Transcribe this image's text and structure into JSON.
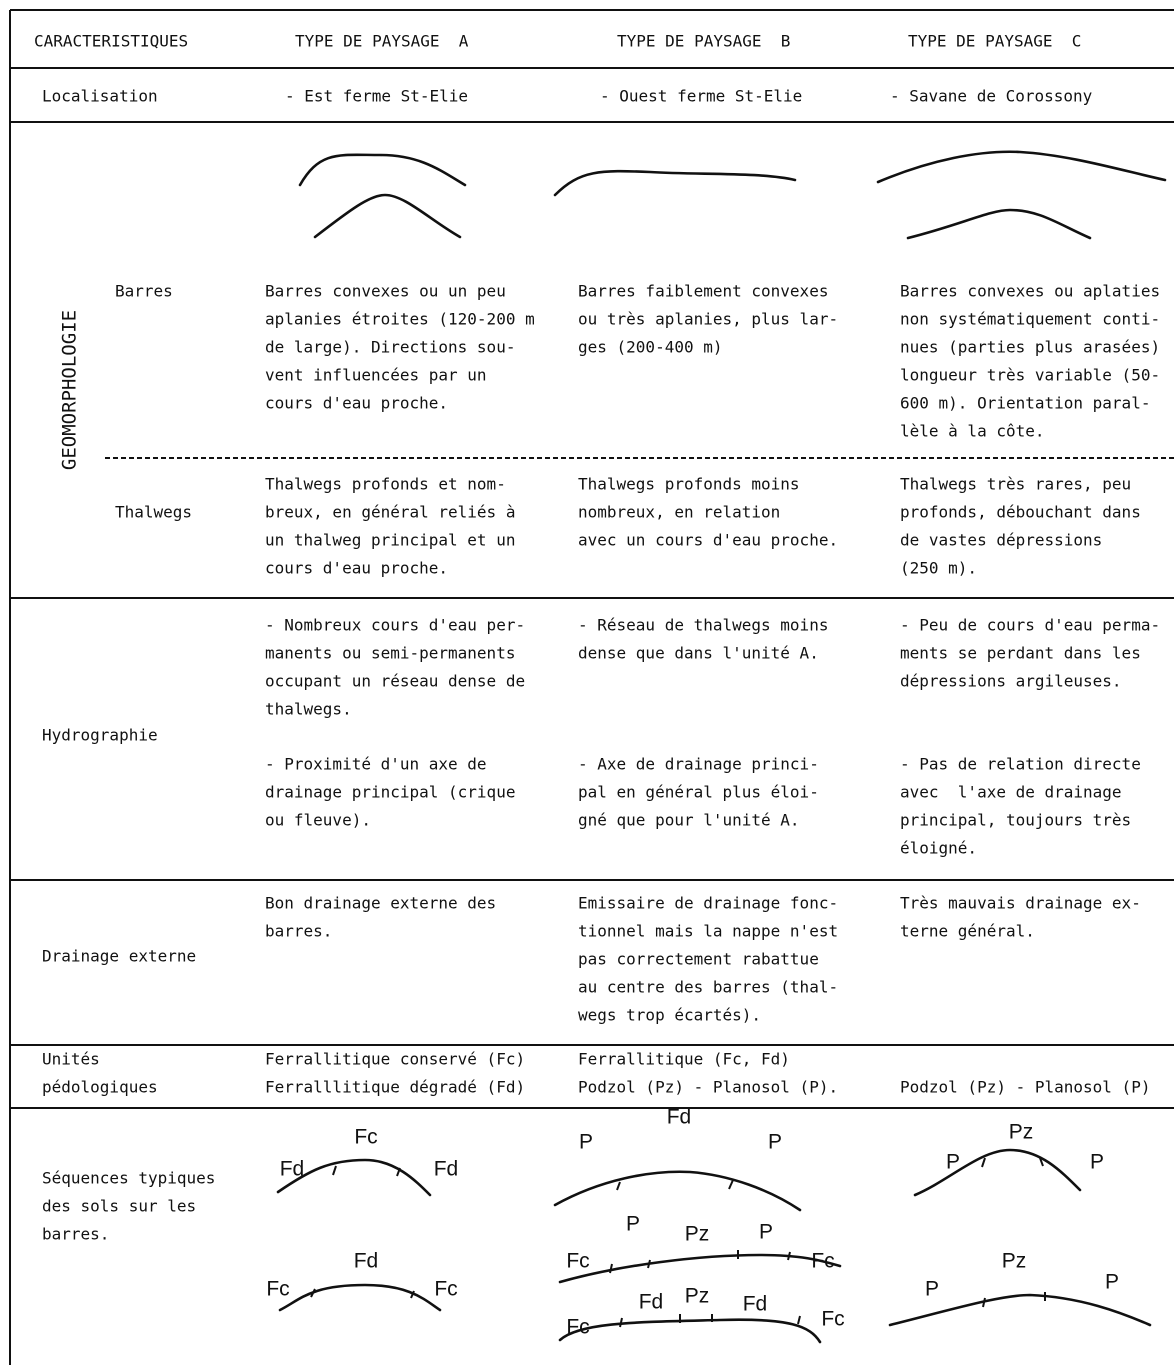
{
  "header": {
    "characteristics": "CARACTERISTIQUES",
    "type_a": "TYPE DE PAYSAGE  A",
    "type_b": "TYPE DE PAYSAGE  B",
    "type_c": "TYPE DE PAYSAGE  C"
  },
  "localisation": {
    "label": "Localisation",
    "a": "- Est ferme St-Elie",
    "b": "- Ouest ferme St-Elie",
    "c": "- Savane de Corossony"
  },
  "geomorphologie": {
    "label": "GEOMORPHOLOGIE",
    "barres": {
      "label": "Barres",
      "a": [
        "Barres convexes ou un peu",
        "aplanies étroites (120-200 m",
        "de large). Directions sou-",
        "vent influencées par un",
        "cours d'eau proche."
      ],
      "b": [
        "Barres faiblement convexes",
        "ou très aplanies, plus lar-",
        "ges (200-400 m)"
      ],
      "c": [
        "Barres convexes ou aplaties",
        "non systématiquement conti-",
        "nues (parties plus arasées)",
        "longueur très variable (50-",
        "600 m). Orientation paral-",
        "lèle à la côte."
      ]
    },
    "thalwegs": {
      "label": "Thalwegs",
      "a": [
        "Thalwegs profonds et nom-",
        "breux, en général reliés à",
        "un thalweg principal et un",
        "cours d'eau proche."
      ],
      "b": [
        "Thalwegs profonds moins",
        "nombreux, en relation",
        "avec un cours d'eau proche."
      ],
      "c": [
        "Thalwegs très rares, peu",
        "profonds, débouchant dans",
        "de vastes dépressions",
        "(250 m)."
      ]
    }
  },
  "hydrographie": {
    "label": "Hydrographie",
    "a": [
      [
        "- Nombreux cours d'eau per-",
        "manents ou semi-permanents",
        "occupant un réseau dense de",
        "thalwegs."
      ],
      [
        "- Proximité d'un axe de",
        "drainage principal (crique",
        "ou fleuve)."
      ]
    ],
    "b": [
      [
        "- Réseau de thalwegs moins",
        "dense que dans l'unité A."
      ],
      [
        "- Axe de drainage princi-",
        "pal en général plus éloi-",
        "gné que pour l'unité A."
      ]
    ],
    "c": [
      [
        "- Peu de cours d'eau perma-",
        "ments se perdant dans les",
        "dépressions argileuses."
      ],
      [
        "- Pas de relation directe",
        "avec  l'axe de drainage",
        "principal, toujours très",
        "éloigné."
      ]
    ]
  },
  "drainage": {
    "label": "Drainage externe",
    "a": [
      "Bon drainage externe des",
      "barres."
    ],
    "b": [
      "Emissaire de drainage fonc-",
      "tionnel mais la nappe n'est",
      "pas correctement rabattue",
      "au centre des barres (thal-",
      "wegs trop écartés)."
    ],
    "c": [
      "Très mauvais drainage ex-",
      "terne général."
    ]
  },
  "unites": {
    "label": [
      "Unités",
      "pédologiques"
    ],
    "a": [
      "Ferrallitique conservé (Fc)",
      "Ferralllitique dégradé (Fd)"
    ],
    "b": [
      "Ferrallitique (Fc, Fd)",
      "Podzol (Pz) - Planosol (P)."
    ],
    "c": [
      "Podzol (Pz) - Planosol (P)"
    ]
  },
  "sequences": {
    "label": [
      "Séquences typiques",
      "des sols sur les",
      "barres."
    ],
    "a": [
      [
        "Fd",
        "Fc",
        "Fd"
      ],
      [
        "Fc",
        "Fd",
        "Fc"
      ]
    ],
    "b": [
      [
        "P",
        "Fd",
        "P"
      ],
      [
        "Fc",
        "P",
        "Pz",
        "P",
        "Fc"
      ],
      [
        "Fc",
        "Fd",
        "Pz",
        "Fd",
        "Fc"
      ]
    ],
    "c": [
      [
        "P",
        "Pz",
        "P"
      ],
      [
        "P",
        "Pz",
        "P"
      ]
    ]
  }
}
